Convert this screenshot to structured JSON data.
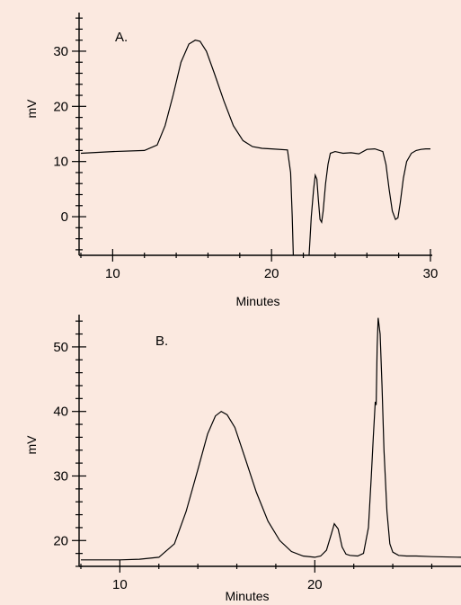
{
  "chart_data": [
    {
      "type": "line",
      "panel_label": "A.",
      "xlabel": "Minutes",
      "ylabel": "mV",
      "xlim": [
        8,
        30
      ],
      "ylim": [
        -7,
        37
      ],
      "x_ticks": [
        10,
        20,
        30
      ],
      "y_ticks": [
        0,
        10,
        20,
        30
      ],
      "grid": false,
      "series": [
        {
          "x": [
            8,
            10,
            12,
            12.8,
            13.3,
            13.8,
            14.3,
            14.8,
            15.2,
            15.5,
            15.9,
            16.4,
            17.0,
            17.6,
            18.2,
            18.8,
            19.4,
            20.0,
            21.0,
            21.2,
            21.3,
            21.4,
            21.5,
            22.2,
            22.3,
            22.5,
            22.65,
            22.75,
            22.85,
            22.95,
            23.05,
            23.15,
            23.25,
            23.4,
            23.55,
            23.7,
            24.0,
            24.5,
            25.0,
            25.5,
            26.0,
            26.5,
            27.0,
            27.2,
            27.4,
            27.6,
            27.8,
            27.95,
            28.1,
            28.3,
            28.5,
            28.8,
            29.1,
            29.4,
            29.7,
            30
          ],
          "y": [
            11.5,
            11.8,
            12.0,
            13.0,
            16.5,
            22.0,
            28.0,
            31.3,
            32.0,
            31.8,
            30.0,
            26.0,
            21.0,
            16.5,
            13.8,
            12.7,
            12.4,
            12.3,
            12.1,
            8.0,
            0.0,
            -10.0,
            -20.0,
            -20.0,
            -10.0,
            0.0,
            5.0,
            7.5,
            6.8,
            3.0,
            -0.5,
            -1.0,
            1.0,
            6.0,
            9.5,
            11.5,
            11.8,
            11.5,
            11.6,
            11.4,
            12.2,
            12.3,
            11.8,
            9.5,
            5.0,
            1.0,
            -0.5,
            -0.2,
            2.5,
            7.0,
            10.0,
            11.5,
            12.0,
            12.2,
            12.3,
            12.3
          ]
        }
      ]
    },
    {
      "type": "line",
      "panel_label": "B.",
      "xlabel": "Minutes",
      "ylabel": "mV",
      "xlim": [
        8,
        27.5
      ],
      "ylim": [
        16,
        55
      ],
      "x_ticks": [
        10,
        20
      ],
      "y_ticks": [
        20,
        30,
        40,
        50
      ],
      "grid": false,
      "series": [
        {
          "x": [
            8,
            10,
            11,
            12,
            12.8,
            13.4,
            14.0,
            14.5,
            14.9,
            15.2,
            15.5,
            15.9,
            16.4,
            17.0,
            17.6,
            18.2,
            18.8,
            19.4,
            20.0,
            20.3,
            20.6,
            20.85,
            21.0,
            21.2,
            21.4,
            21.6,
            21.8,
            22.2,
            22.5,
            22.75,
            22.9,
            23.0,
            23.1,
            23.15,
            23.2,
            23.25,
            23.35,
            23.45,
            23.55,
            23.7,
            23.85,
            24.0,
            24.3,
            24.7,
            25.2,
            26,
            27.5
          ],
          "y": [
            17.0,
            17.0,
            17.1,
            17.4,
            19.5,
            24.5,
            31.0,
            36.5,
            39.3,
            40.0,
            39.5,
            37.5,
            33.0,
            27.5,
            23.0,
            20.0,
            18.3,
            17.6,
            17.4,
            17.6,
            18.5,
            21.0,
            22.6,
            21.8,
            19.0,
            17.9,
            17.7,
            17.6,
            18.0,
            22.0,
            30.0,
            36.0,
            41.5,
            41.0,
            50.0,
            54.5,
            52.0,
            44.0,
            34.0,
            24.5,
            19.5,
            18.2,
            17.7,
            17.6,
            17.6,
            17.5,
            17.4
          ]
        }
      ]
    }
  ]
}
